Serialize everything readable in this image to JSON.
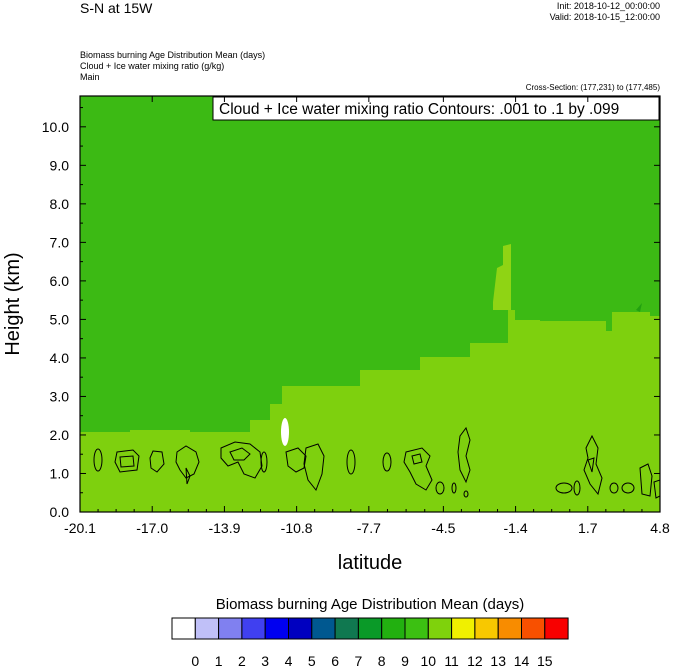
{
  "header": {
    "title": "S-N at 15W",
    "init": "Init: 2018-10-12_00:00:00",
    "valid": "Valid: 2018-10-15_12:00:00",
    "field1": "Biomass burning Age Distribution Mean   (days)",
    "field2": "Cloud + Ice water mixing ratio   (g/kg)",
    "field3": "Main",
    "cross_section": "Cross-Section: (177,231) to (177,485)"
  },
  "chart_data": {
    "type": "heatmap",
    "contour_label": "Cloud + Ice water mixing ratio Contours: .001 to .1 by .099",
    "xlabel": "latitude",
    "ylabel": "Height (km)",
    "xlim": [
      -20.1,
      4.8
    ],
    "ylim": [
      0.0,
      10.8
    ],
    "x_ticks": [
      "-20.1",
      "-17.0",
      "-13.9",
      "-10.8",
      "-7.7",
      "-4.5",
      "-1.4",
      "1.7",
      "4.8"
    ],
    "y_ticks": [
      "0.0",
      "1.0",
      "2.0",
      "3.0",
      "4.0",
      "5.0",
      "6.0",
      "7.0",
      "8.0",
      "9.0",
      "10.0"
    ],
    "colorbar": {
      "title": "Biomass burning Age Distribution Mean  (days)",
      "labels": [
        "0",
        "1",
        "2",
        "3",
        "4",
        "5",
        "6",
        "7",
        "8",
        "9",
        "10",
        "11",
        "12",
        "13",
        "14",
        "15"
      ],
      "colors": [
        "#ffffff",
        "#c0c0f8",
        "#8080f0",
        "#4040f0",
        "#0000f0",
        "#0000c0",
        "#005890",
        "#107850",
        "#0a9a28",
        "#22b010",
        "#3cc012",
        "#7fd20c",
        "#f0f000",
        "#f8c800",
        "#f88c00",
        "#f85000",
        "#f80000"
      ]
    },
    "regions": [
      {
        "label": "9",
        "color": "#3cba14",
        "description": "upper region, about 2.2-10.8 km at south and center, top layer"
      },
      {
        "label": "10",
        "color": "#7ed00e",
        "description": "lower layer and central/northern mid levels"
      },
      {
        "label": "11",
        "color": "#8fd414",
        "description": "narrow tongue near 6 km around -1.4 latitude"
      }
    ]
  }
}
